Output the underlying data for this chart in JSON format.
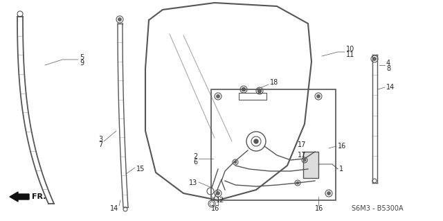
{
  "bg_color": "#ffffff",
  "line_color": "#555555",
  "text_color": "#222222",
  "diagram_code": "S6M3 - B5300A"
}
